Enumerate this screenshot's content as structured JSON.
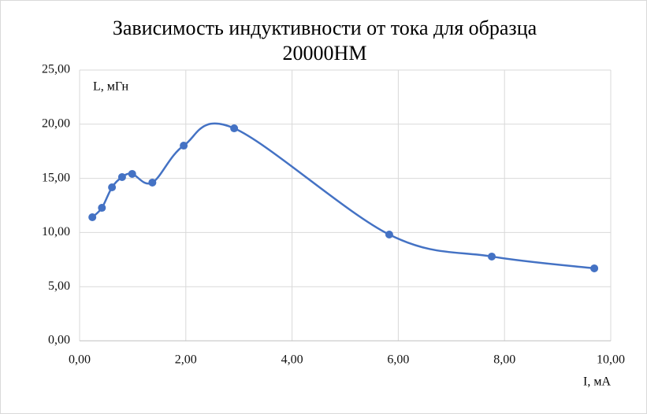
{
  "chart_data": {
    "type": "line",
    "title": [
      "Зависимость индуктивности от тока для образца",
      "20000НМ"
    ],
    "x_label": "I, мА",
    "y_label": "L, мГн",
    "x": [
      0.24,
      0.42,
      0.61,
      0.8,
      0.99,
      1.37,
      1.96,
      2.91,
      5.83,
      7.76,
      9.69
    ],
    "series": [
      {
        "color": "#4472c4",
        "values": [
          11.41,
          12.28,
          14.17,
          15.12,
          15.41,
          14.61,
          18.02,
          19.62,
          9.81,
          7.78,
          6.69
        ]
      }
    ],
    "xlim": [
      0,
      10
    ],
    "ylim": [
      0,
      25
    ],
    "xticks": [
      {
        "value": 0,
        "label": "0,00"
      },
      {
        "value": 2,
        "label": "2,00"
      },
      {
        "value": 4,
        "label": "4,00"
      },
      {
        "value": 6,
        "label": "6,00"
      },
      {
        "value": 8,
        "label": "8,00"
      },
      {
        "value": 10,
        "label": "10,00"
      }
    ],
    "yticks": [
      {
        "value": 0,
        "label": "0,00"
      },
      {
        "value": 5,
        "label": "5,00"
      },
      {
        "value": 10,
        "label": "10,00"
      },
      {
        "value": 15,
        "label": "15,00"
      },
      {
        "value": 20,
        "label": "20,00"
      },
      {
        "value": 25,
        "label": "25,00"
      }
    ],
    "grid": true,
    "smooth": true
  }
}
